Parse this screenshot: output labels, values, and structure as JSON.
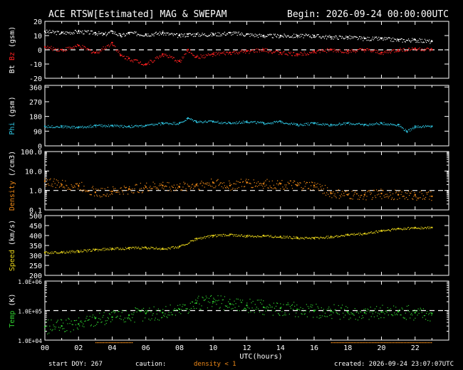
{
  "header": {
    "title": "ACE RTSW[Estimated] MAG & SWEPAM",
    "begin": "Begin: 2026-09-24 00:00:00UTC"
  },
  "footer": {
    "start_doy": "start DOY: 267",
    "caution": "caution:",
    "density_note": "density < 1",
    "created": "created: 2026-09-24 23:07:07UTC"
  },
  "colors": {
    "background": "#000000",
    "axes": "#ffffff",
    "bt": "#ffffff",
    "bz": "#ff2020",
    "phi": "#2ec4e0",
    "density": "#f08a18",
    "speed": "#e6d21a",
    "temp": "#2fd02f"
  },
  "chart_data": [
    {
      "type": "scatter",
      "xlabel": "UTC(hours)",
      "x_ticks": [
        "00",
        "02",
        "04",
        "06",
        "08",
        "10",
        "12",
        "14",
        "16",
        "18",
        "20",
        "22"
      ],
      "xlim": [
        0,
        24
      ],
      "ylabel_parts": [
        "Bt",
        "Bz",
        "(gsm)"
      ],
      "ylim": [
        -20,
        20
      ],
      "y_ticks": [
        "20",
        "10",
        "0",
        "-10",
        "-20"
      ],
      "reference_lines": [
        0
      ],
      "series": [
        {
          "name": "Bt",
          "x": [
            0,
            1,
            2,
            3,
            3.5,
            4,
            4.5,
            5,
            6,
            7,
            8,
            8.5,
            9,
            10,
            11,
            12,
            13,
            14,
            15,
            16,
            17,
            18,
            19,
            20,
            21,
            22,
            23
          ],
          "y": [
            13,
            12,
            13,
            12,
            11,
            13,
            10,
            12,
            11,
            12,
            10,
            11,
            11,
            11,
            12,
            11,
            10,
            10,
            10,
            10,
            9,
            9,
            8,
            8,
            7,
            7,
            6
          ]
        },
        {
          "name": "Bz",
          "x": [
            0,
            1,
            2,
            3,
            4,
            4.5,
            5,
            6,
            7,
            8,
            8.5,
            9,
            10,
            11,
            12,
            13,
            14,
            15,
            16,
            17,
            18,
            19,
            20,
            21,
            22,
            23
          ],
          "y": [
            2,
            0,
            3,
            -2,
            5,
            -4,
            -6,
            -10,
            -3,
            -8,
            0,
            -5,
            -3,
            -2,
            -1,
            0,
            -2,
            -3,
            -1,
            0,
            -1,
            0,
            -2,
            0,
            1,
            0
          ]
        }
      ]
    },
    {
      "type": "scatter",
      "ylabel_parts": [
        "Phi",
        "(gsm)"
      ],
      "ylim": [
        0,
        370
      ],
      "y_ticks": [
        "360",
        "270",
        "180",
        "90",
        "0"
      ],
      "series": [
        {
          "name": "Phi",
          "x": [
            0,
            1,
            2,
            3,
            4,
            5,
            6,
            7,
            8,
            8.5,
            9,
            10,
            11,
            12,
            13,
            14,
            15,
            16,
            17,
            18,
            19,
            20,
            21,
            21.5,
            22,
            23
          ],
          "y": [
            120,
            120,
            115,
            125,
            125,
            120,
            125,
            140,
            140,
            170,
            150,
            150,
            140,
            150,
            140,
            150,
            130,
            140,
            130,
            140,
            130,
            140,
            130,
            90,
            120,
            120
          ]
        }
      ]
    },
    {
      "type": "scatter",
      "ylabel_parts": [
        "Density",
        "(/cm3)"
      ],
      "y_scale": "log",
      "ylim": [
        0.1,
        100
      ],
      "y_ticks": [
        "100.0",
        "10.0",
        "1.0",
        "0.1"
      ],
      "reference_lines": [
        1
      ],
      "series": [
        {
          "name": "Density",
          "x": [
            0,
            1,
            2,
            3,
            4,
            5,
            6,
            7,
            8,
            9,
            10,
            11,
            12,
            13,
            14,
            15,
            16,
            17,
            18,
            19,
            20,
            21,
            22,
            23
          ],
          "y": [
            3,
            2,
            1.8,
            0.8,
            0.9,
            1.2,
            1.5,
            1.8,
            1.5,
            2,
            2.5,
            1.8,
            2.5,
            2.2,
            2.2,
            1.8,
            1.8,
            0.7,
            0.6,
            0.6,
            0.7,
            0.6,
            0.6,
            0.5
          ]
        }
      ]
    },
    {
      "type": "scatter",
      "ylabel_parts": [
        "Speed",
        "(km/s)"
      ],
      "ylim": [
        200,
        500
      ],
      "y_ticks": [
        "500",
        "450",
        "400",
        "350",
        "300",
        "250",
        "200"
      ],
      "series": [
        {
          "name": "Speed",
          "x": [
            0,
            1,
            2,
            3,
            4,
            5,
            6,
            7,
            8,
            9,
            10,
            11,
            12,
            13,
            14,
            15,
            16,
            17,
            18,
            19,
            20,
            21,
            22,
            23
          ],
          "y": [
            315,
            318,
            322,
            330,
            335,
            338,
            340,
            335,
            345,
            385,
            400,
            405,
            398,
            400,
            395,
            390,
            388,
            395,
            405,
            410,
            425,
            435,
            440,
            440
          ]
        }
      ]
    },
    {
      "type": "scatter",
      "ylabel_parts": [
        "Temp",
        "(K)"
      ],
      "y_scale": "log",
      "ylim": [
        10000,
        1000000
      ],
      "y_ticks": [
        "1.0E+06",
        "1.0E+05",
        "1.0E+04"
      ],
      "reference_lines": [
        100000
      ],
      "series": [
        {
          "name": "Temp",
          "x": [
            0,
            1,
            2,
            3,
            4,
            5,
            6,
            7,
            8,
            9,
            10,
            11,
            12,
            13,
            14,
            15,
            16,
            17,
            18,
            19,
            20,
            21,
            22,
            23
          ],
          "y": [
            28000,
            30000,
            35000,
            55000,
            60000,
            70000,
            80000,
            85000,
            110000,
            180000,
            200000,
            170000,
            150000,
            130000,
            120000,
            110000,
            100000,
            95000,
            90000,
            85000,
            90000,
            95000,
            85000,
            80000
          ]
        }
      ]
    }
  ]
}
